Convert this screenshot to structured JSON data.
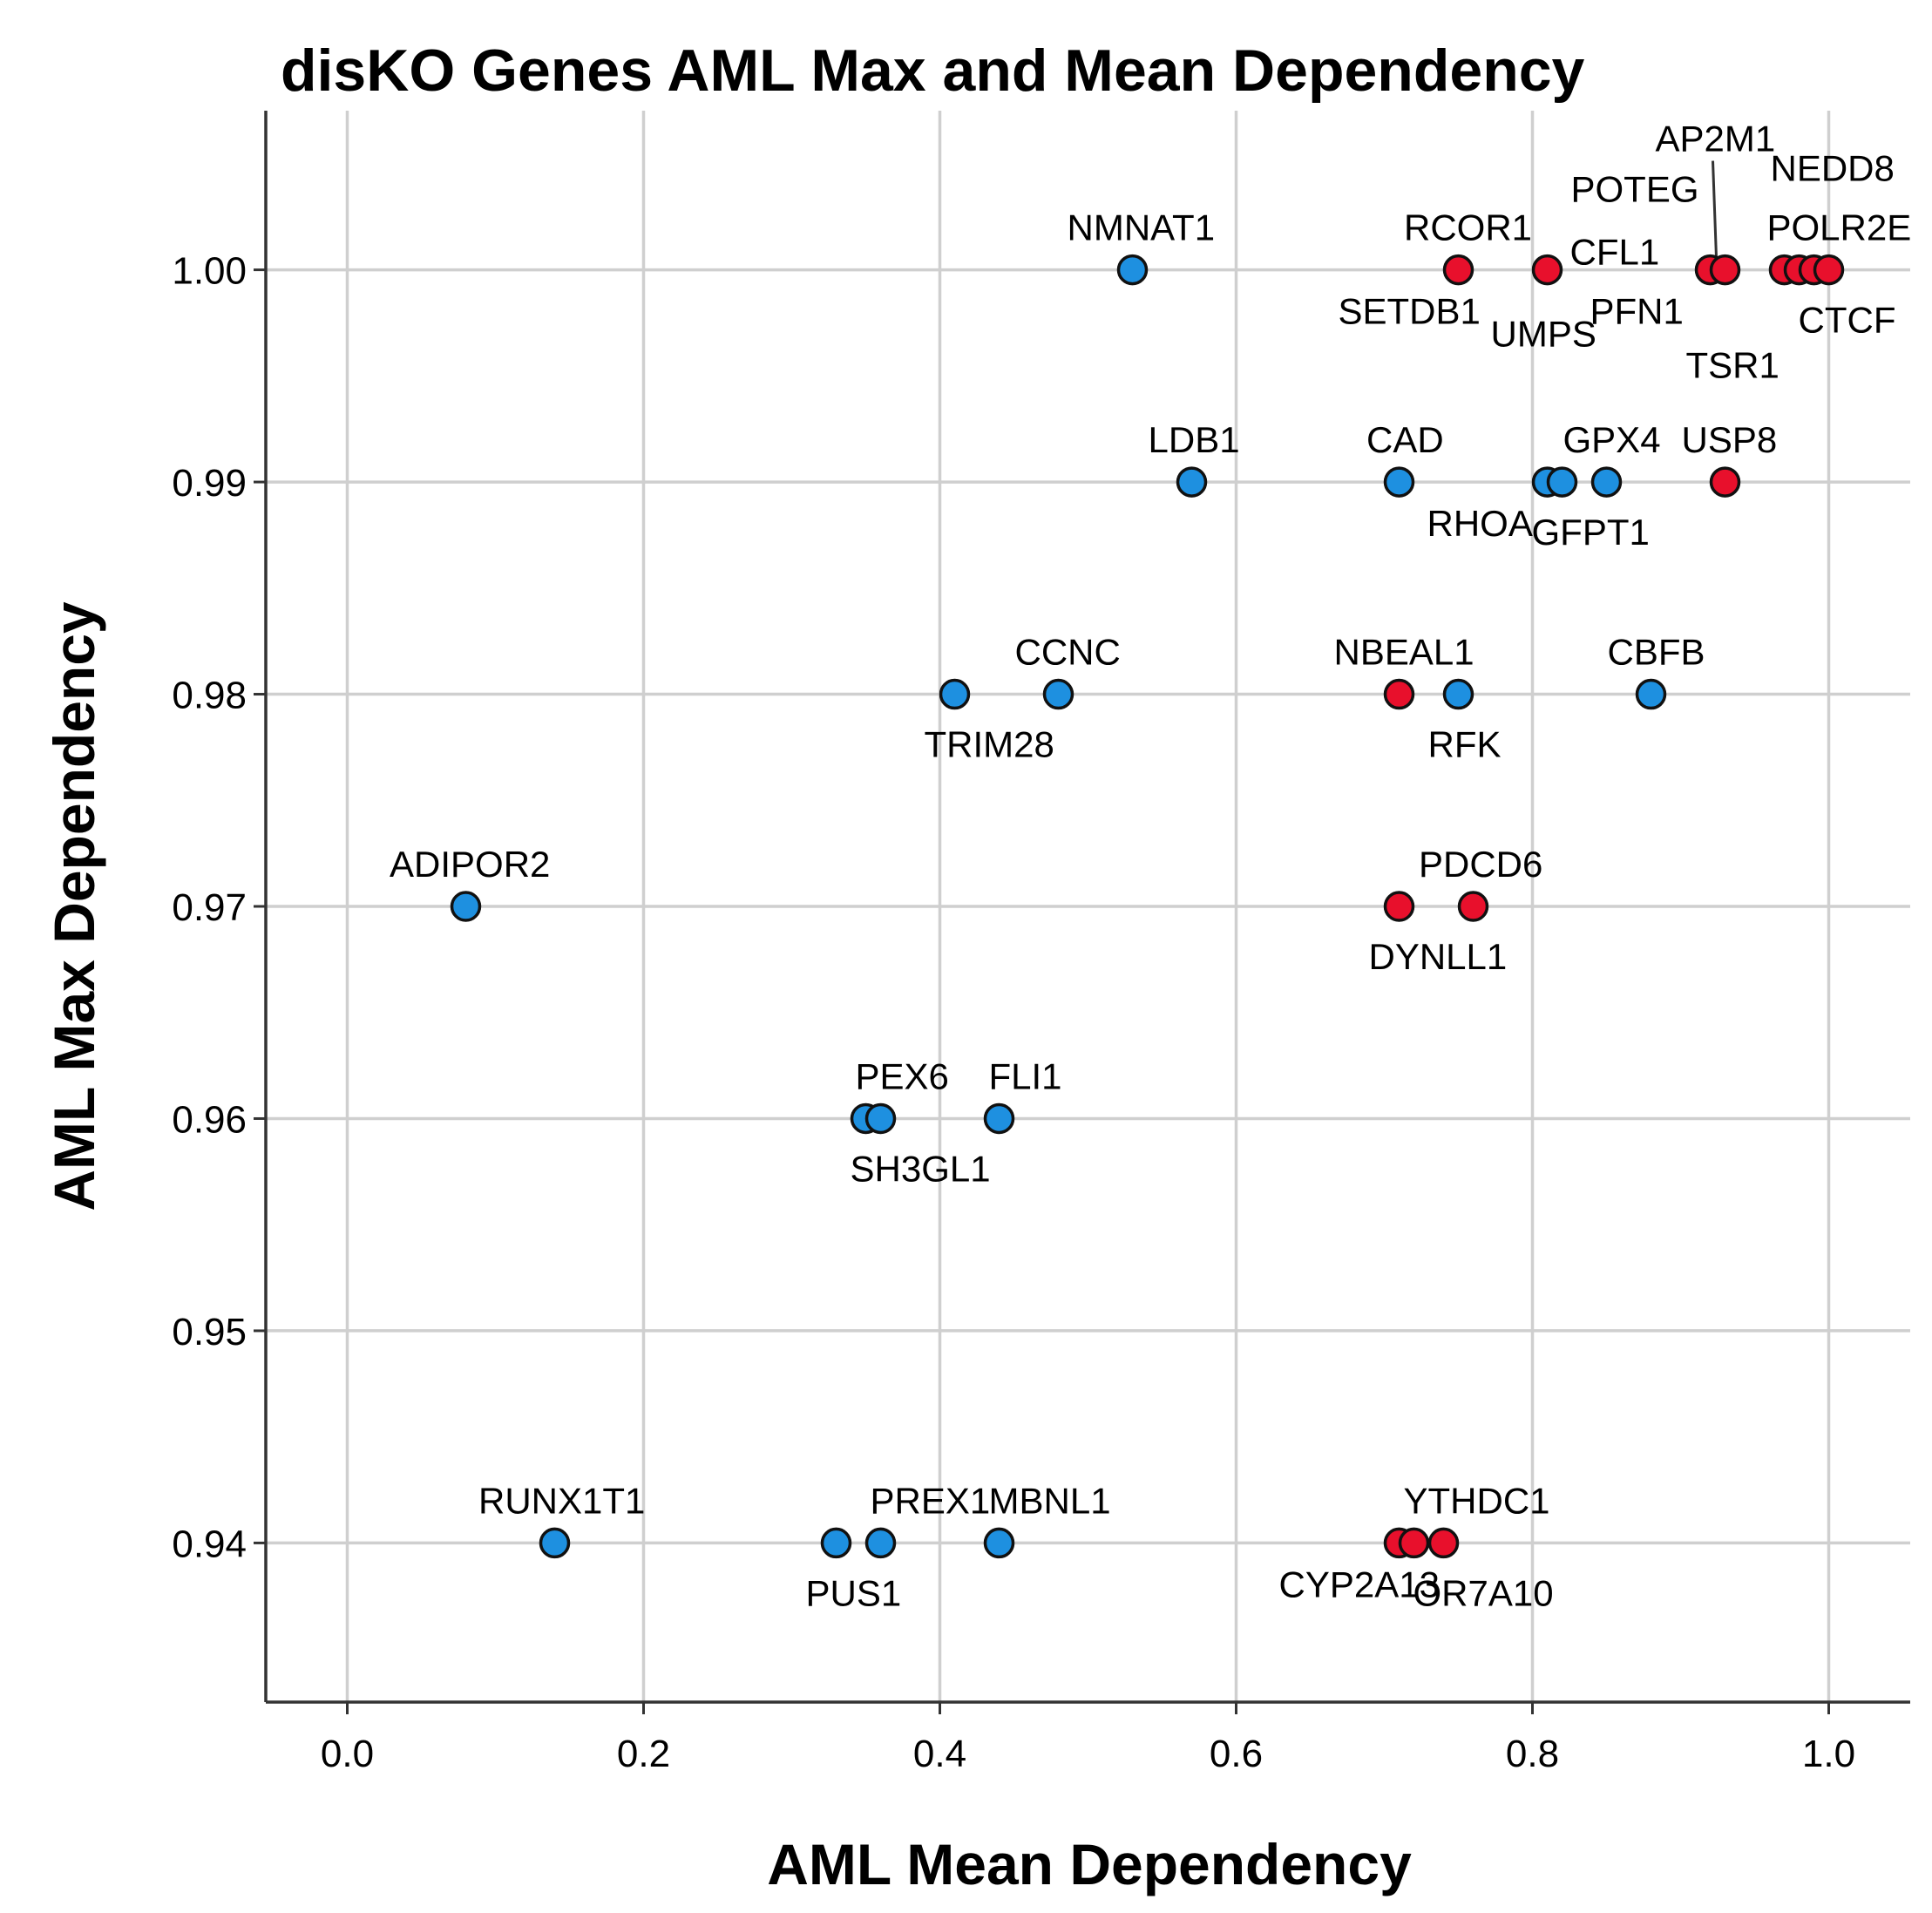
{
  "chart_data": {
    "type": "scatter",
    "title": "disKO Genes AML Max and Mean Dependency",
    "xlabel": "AML Mean Dependency",
    "ylabel": "AML Max Dependency",
    "xlim": [
      -0.055,
      1.055
    ],
    "ylim": [
      0.9325,
      1.0075
    ],
    "x_ticks": [
      0.0,
      0.2,
      0.4,
      0.6,
      0.8,
      1.0
    ],
    "x_tick_labels": [
      "0.0",
      "0.2",
      "0.4",
      "0.6",
      "0.8",
      "1.0"
    ],
    "y_ticks": [
      0.94,
      0.95,
      0.96,
      0.97,
      0.98,
      0.99,
      1.0
    ],
    "y_tick_labels": [
      "0.94",
      "0.95",
      "0.96",
      "0.97",
      "0.98",
      "0.99",
      "1.00"
    ],
    "grid": true,
    "colors": {
      "blue": "#1e90e0",
      "red": "#e8102c"
    },
    "points": [
      {
        "label": "NMNAT1",
        "x": 0.53,
        "y": 1.0,
        "group": "blue",
        "lpos": "above"
      },
      {
        "label": "SETDB1",
        "x": 0.75,
        "y": 1.0,
        "group": "red",
        "lpos": "below-left"
      },
      {
        "label": "RCOR1",
        "x": 0.75,
        "y": 1.0,
        "group": "red",
        "lpos": "above"
      },
      {
        "label": "CFL1",
        "x": 0.81,
        "y": 1.0,
        "group": "red",
        "lpos": "right"
      },
      {
        "label": "UMPS",
        "x": 0.81,
        "y": 1.0,
        "group": "red",
        "lpos": "below-far"
      },
      {
        "label": "PFN1",
        "x": 0.92,
        "y": 1.0,
        "group": "red",
        "lpos": "below-left"
      },
      {
        "label": "POTEG",
        "x": 0.92,
        "y": 1.0,
        "group": "red",
        "lpos": "above-left-high"
      },
      {
        "label": "AP2M1",
        "x": 0.93,
        "y": 1.0,
        "group": "red",
        "lpos": "leader"
      },
      {
        "label": "POLR2E",
        "x": 0.97,
        "y": 1.0,
        "group": "red",
        "lpos": "above-left"
      },
      {
        "label": "TSR1",
        "x": 0.98,
        "y": 1.0,
        "group": "red",
        "lpos": "below-far-left"
      },
      {
        "label": "NEDD8",
        "x": 0.99,
        "y": 1.0,
        "group": "red",
        "lpos": "above-high"
      },
      {
        "label": "CTCF",
        "x": 1.0,
        "y": 1.0,
        "group": "red",
        "lpos": "below-right"
      },
      {
        "label": "LDB1",
        "x": 0.57,
        "y": 0.99,
        "group": "blue",
        "lpos": "above"
      },
      {
        "label": "CAD",
        "x": 0.71,
        "y": 0.99,
        "group": "blue",
        "lpos": "above"
      },
      {
        "label": "RHOA",
        "x": 0.81,
        "y": 0.99,
        "group": "blue",
        "lpos": "below-left"
      },
      {
        "label": "GFPT1",
        "x": 0.82,
        "y": 0.99,
        "group": "blue",
        "lpos": "below-right"
      },
      {
        "label": "GPX4",
        "x": 0.85,
        "y": 0.99,
        "group": "blue",
        "lpos": "above"
      },
      {
        "label": "USP8",
        "x": 0.93,
        "y": 0.99,
        "group": "red",
        "lpos": "above"
      },
      {
        "label": "TRIM28",
        "x": 0.41,
        "y": 0.98,
        "group": "blue",
        "lpos": "below-right"
      },
      {
        "label": "CCNC",
        "x": 0.48,
        "y": 0.98,
        "group": "blue",
        "lpos": "above"
      },
      {
        "label": "NBEAL1",
        "x": 0.71,
        "y": 0.98,
        "group": "red",
        "lpos": "above"
      },
      {
        "label": "RFK",
        "x": 0.75,
        "y": 0.98,
        "group": "blue",
        "lpos": "below-right"
      },
      {
        "label": "CBFB",
        "x": 0.88,
        "y": 0.98,
        "group": "blue",
        "lpos": "above"
      },
      {
        "label": "ADIPOR2",
        "x": 0.08,
        "y": 0.97,
        "group": "blue",
        "lpos": "above"
      },
      {
        "label": "DYNLL1",
        "x": 0.71,
        "y": 0.97,
        "group": "red",
        "lpos": "below-right"
      },
      {
        "label": "PDCD6",
        "x": 0.76,
        "y": 0.97,
        "group": "red",
        "lpos": "above"
      },
      {
        "label": "PEX6",
        "x": 0.35,
        "y": 0.96,
        "group": "blue",
        "lpos": "above-right"
      },
      {
        "label": "SH3GL1",
        "x": 0.36,
        "y": 0.96,
        "group": "blue",
        "lpos": "below-right"
      },
      {
        "label": "FLI1",
        "x": 0.44,
        "y": 0.96,
        "group": "blue",
        "lpos": "above-right"
      },
      {
        "label": "RUNX1T1",
        "x": 0.14,
        "y": 0.94,
        "group": "blue",
        "lpos": "above"
      },
      {
        "label": "PUS1",
        "x": 0.33,
        "y": 0.94,
        "group": "blue",
        "lpos": "below-right"
      },
      {
        "label": "PREX1",
        "x": 0.36,
        "y": 0.94,
        "group": "blue",
        "lpos": "above-right"
      },
      {
        "label": "MBNL1",
        "x": 0.44,
        "y": 0.94,
        "group": "blue",
        "lpos": "above-right"
      },
      {
        "label": "CYP2A13",
        "x": 0.71,
        "y": 0.94,
        "group": "red",
        "lpos": "below-left"
      },
      {
        "label": "YTHDC1",
        "x": 0.72,
        "y": 0.94,
        "group": "red",
        "lpos": "above-right"
      },
      {
        "label": "OR7A10",
        "x": 0.74,
        "y": 0.94,
        "group": "red",
        "lpos": "below-right"
      }
    ]
  }
}
